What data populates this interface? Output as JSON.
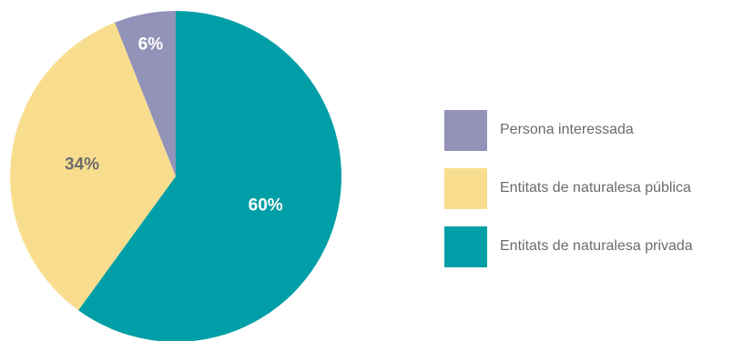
{
  "chart_data": {
    "type": "pie",
    "slices": [
      {
        "label": "Persona interessada",
        "value": 6,
        "display": "6%",
        "color": "#9392b9",
        "label_color": "#ffffff"
      },
      {
        "label": "Entitats de naturalesa pública",
        "value": 34,
        "display": "34%",
        "color": "#f9dd8f",
        "label_color": "#6d6d6d"
      },
      {
        "label": "Entitats de naturalesa privada",
        "value": 60,
        "display": "60%",
        "color": "#009ea6",
        "label_color": "#ffffff"
      }
    ],
    "legend_position": "right"
  }
}
